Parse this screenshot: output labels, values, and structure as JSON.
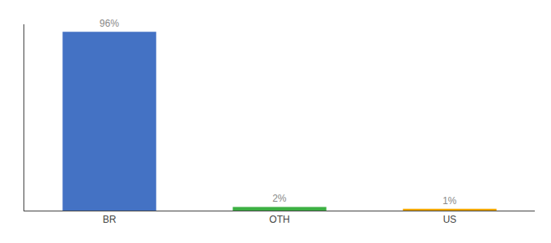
{
  "chart_data": {
    "type": "bar",
    "categories": [
      "BR",
      "OTH",
      "US"
    ],
    "values": [
      96,
      2,
      1
    ],
    "value_labels": [
      "96%",
      "2%",
      "1%"
    ],
    "colors": [
      "#4472c4",
      "#3cb043",
      "#f0a500"
    ],
    "ylim": [
      0,
      100
    ],
    "grid": false,
    "tick_labels": "x",
    "data_labels": true
  }
}
